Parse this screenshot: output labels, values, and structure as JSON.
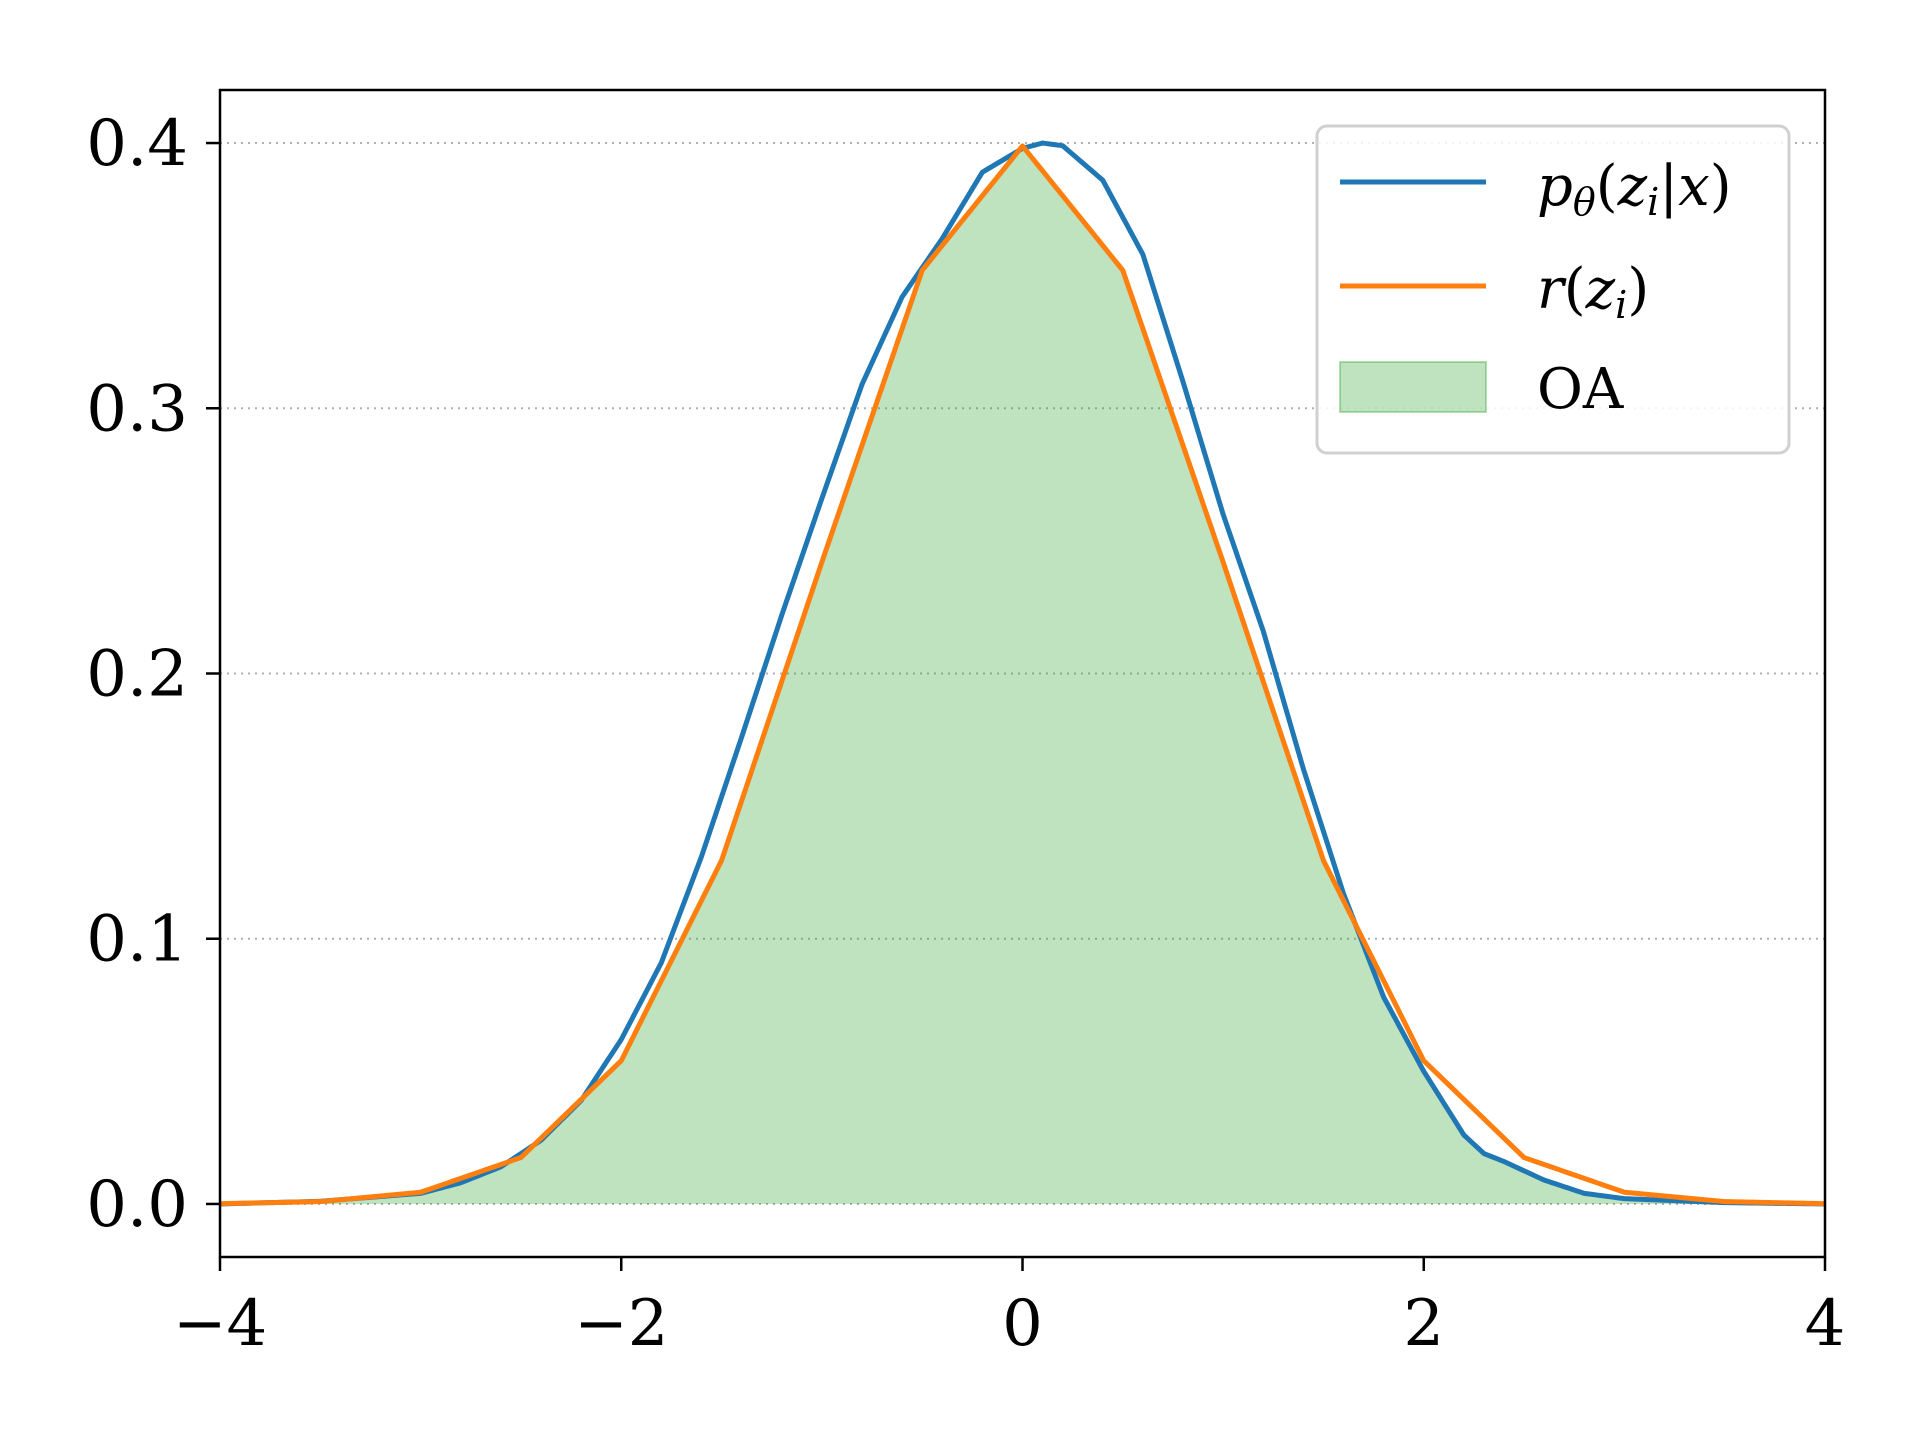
{
  "chart_data": {
    "type": "area",
    "title": "",
    "xlabel": "",
    "ylabel": "",
    "xlim": [
      -4,
      4
    ],
    "ylim": [
      -0.02,
      0.42
    ],
    "x_ticks": [
      -4,
      -2,
      0,
      2,
      4
    ],
    "x_tick_labels": [
      "−4",
      "−2",
      "0",
      "2",
      "4"
    ],
    "y_ticks": [
      0.0,
      0.1,
      0.2,
      0.3,
      0.4
    ],
    "y_tick_labels": [
      "0.0",
      "0.1",
      "0.2",
      "0.3",
      "0.4"
    ],
    "grid": "horizontal dotted",
    "legend_position": "top-right",
    "legend": [
      {
        "key": "p",
        "color": "#1f77b4",
        "kind": "line"
      },
      {
        "key": "r",
        "color": "#ff7f0e",
        "kind": "line"
      },
      {
        "key": "oa",
        "label": "OA",
        "color": "#2ca02c",
        "kind": "patch"
      }
    ],
    "series": [
      {
        "name": "pθ(zi|x)",
        "color": "#1f77b4",
        "x": [
          -4.0,
          -3.5,
          -3.0,
          -2.8,
          -2.6,
          -2.4,
          -2.2,
          -2.0,
          -1.8,
          -1.6,
          -1.4,
          -1.2,
          -1.0,
          -0.8,
          -0.6,
          -0.4,
          -0.2,
          0.0,
          0.1,
          0.2,
          0.4,
          0.6,
          0.8,
          1.0,
          1.2,
          1.4,
          1.6,
          1.8,
          2.0,
          2.2,
          2.3,
          2.4,
          2.6,
          2.8,
          3.0,
          3.5,
          4.0
        ],
        "y": [
          0.0,
          0.001,
          0.004,
          0.008,
          0.014,
          0.024,
          0.039,
          0.062,
          0.091,
          0.131,
          0.176,
          0.222,
          0.266,
          0.309,
          0.342,
          0.364,
          0.389,
          0.398,
          0.4,
          0.399,
          0.386,
          0.358,
          0.31,
          0.26,
          0.216,
          0.164,
          0.117,
          0.078,
          0.05,
          0.026,
          0.019,
          0.016,
          0.009,
          0.004,
          0.002,
          0.0005,
          0.0
        ]
      },
      {
        "name": "r(zi)",
        "color": "#ff7f0e",
        "x": [
          -4.0,
          -3.5,
          -3.0,
          -2.5,
          -2.0,
          -1.5,
          -1.0,
          -0.5,
          0.0,
          0.5,
          1.0,
          1.5,
          2.0,
          2.5,
          3.0,
          3.5,
          4.0
        ],
        "y": [
          0.0001,
          0.0009,
          0.0044,
          0.0175,
          0.054,
          0.1295,
          0.242,
          0.352,
          0.3989,
          0.352,
          0.242,
          0.1295,
          0.054,
          0.0175,
          0.0044,
          0.0009,
          0.0001
        ]
      }
    ],
    "fill": {
      "name": "OA",
      "description_of_region": "overlap (min) of the two densities",
      "color": "#2ca02c",
      "alpha": 0.3
    }
  }
}
